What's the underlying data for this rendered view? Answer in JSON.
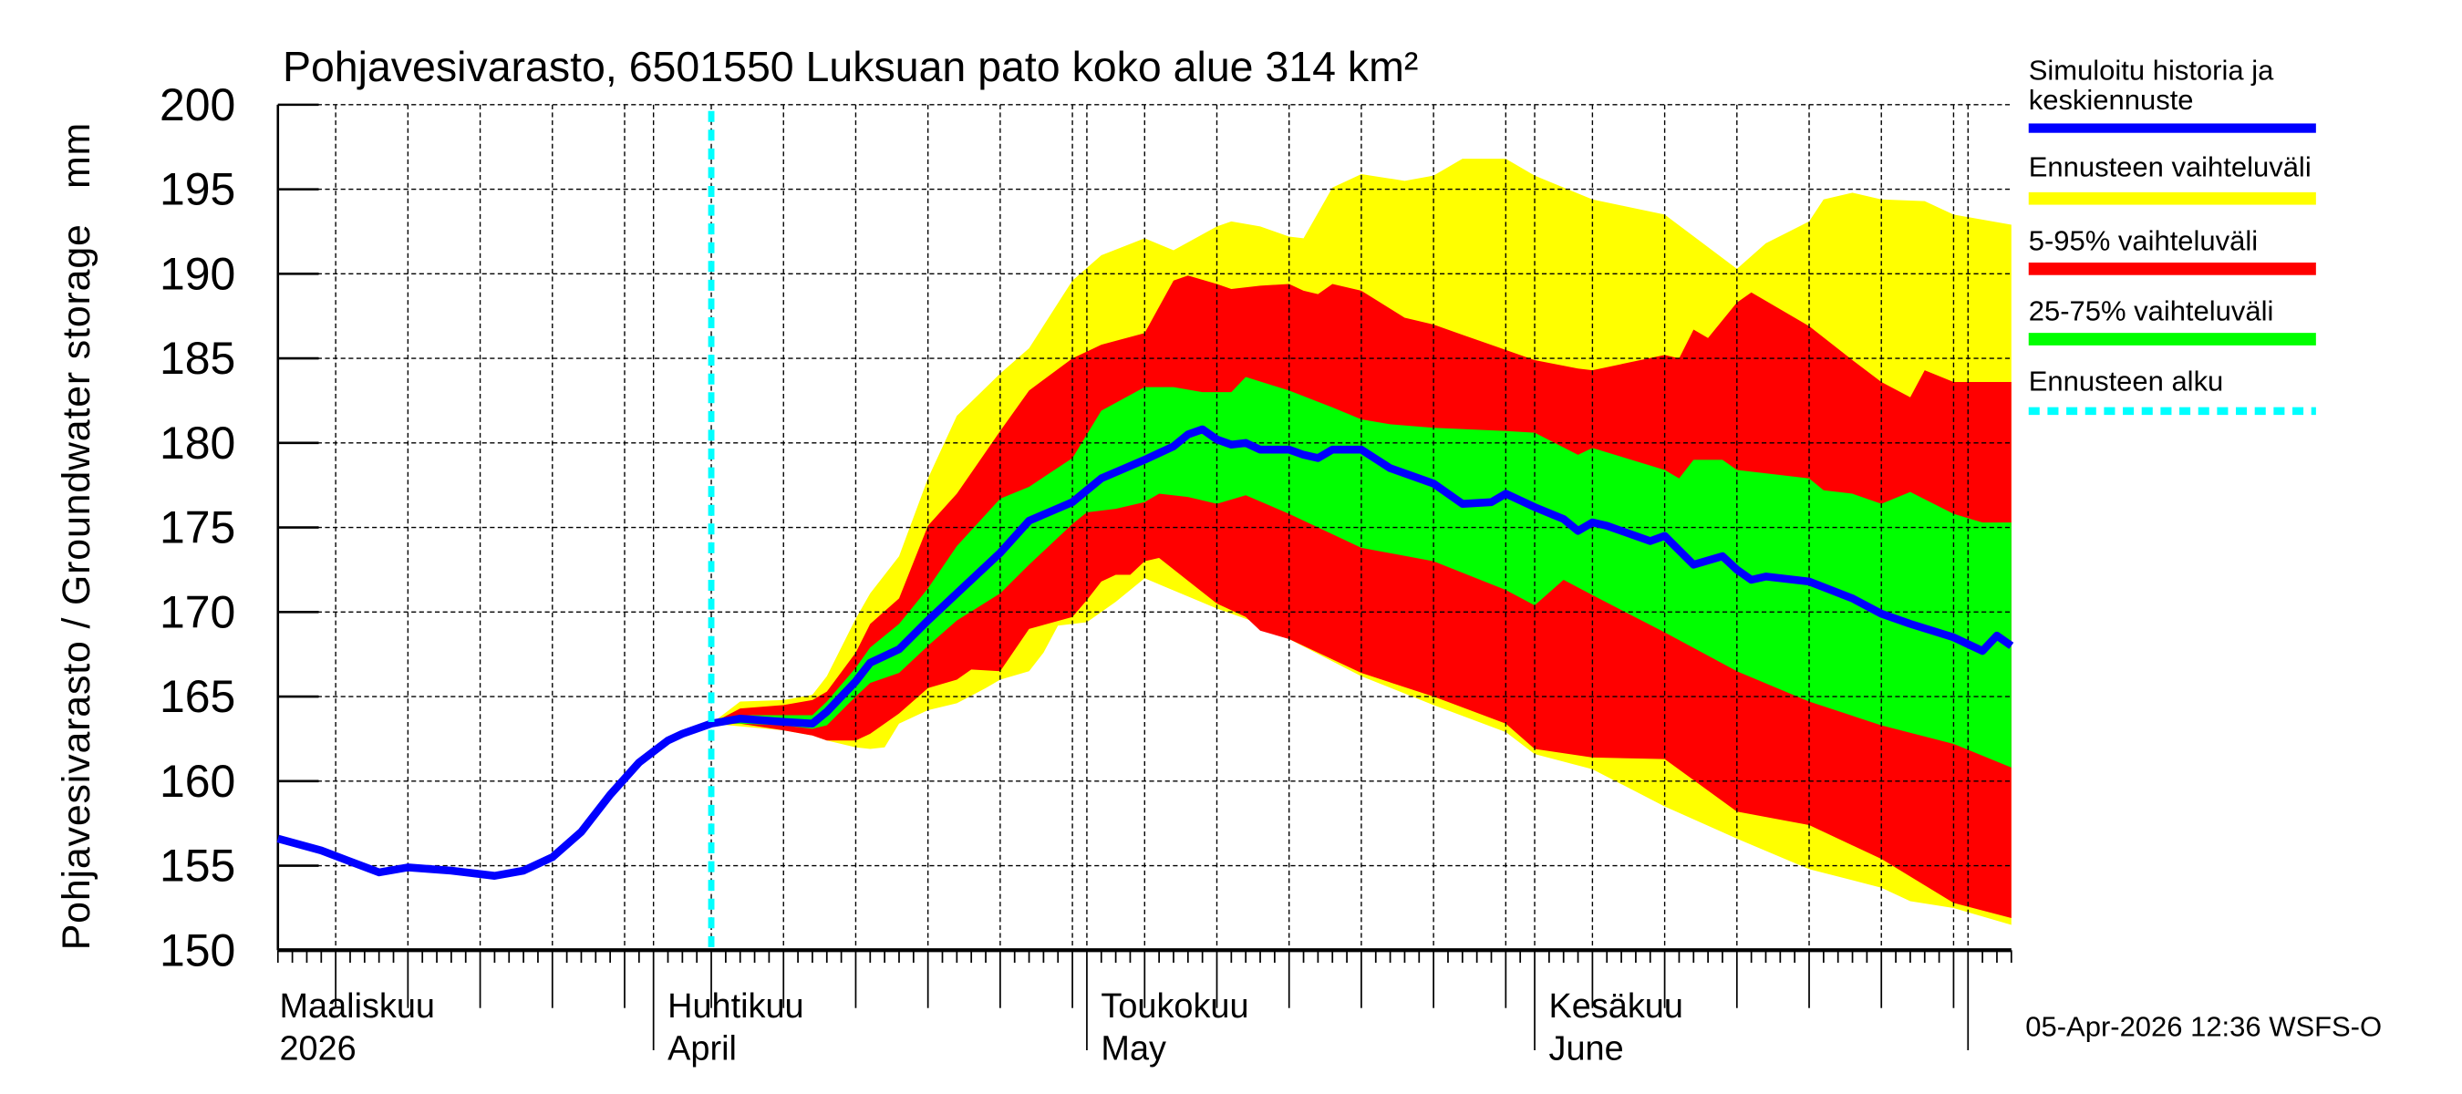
{
  "chart_data": {
    "type": "area",
    "title": "Pohjavesivarasto, 6501550 Luksuan pato koko alue 314 km²",
    "ylabel": "Pohjavesivarasto / Groundwater storage   mm",
    "xlabel": "",
    "xlim": [
      "2026-03-06",
      "2026-07-04"
    ],
    "ylim": [
      150,
      200
    ],
    "yticks": [
      150,
      155,
      160,
      165,
      170,
      175,
      180,
      185,
      190,
      195,
      200
    ],
    "grid": true,
    "legend_position": "right",
    "forecast_start": "2026-04-05",
    "month_labels": [
      {
        "date": "2026-03-01",
        "fi": "Maaliskuu",
        "en": "2026"
      },
      {
        "date": "2026-04-01",
        "fi": "Huhtikuu",
        "en": "April"
      },
      {
        "date": "2026-05-01",
        "fi": "Toukokuu",
        "en": "May"
      },
      {
        "date": "2026-06-01",
        "fi": "Kesäkuu",
        "en": "June"
      }
    ],
    "legend": {
      "median_line1": "Simuloitu historia ja",
      "median_line2": "keskiennuste",
      "range_full": "Ennusteen vaihteluväli",
      "range_5_95": "5-95% vaihteluväli",
      "range_25_75": "25-75% vaihteluväli",
      "forecast_start": "Ennusteen alku"
    },
    "colors": {
      "median": "#0000ff",
      "range_full": "#ffff00",
      "range_5_95": "#ff0000",
      "range_25_75": "#00ff00",
      "forecast_start": "#00ffff"
    },
    "series": {
      "median": [
        [
          "2026-03-06",
          156.6
        ],
        [
          "2026-03-09",
          155.9
        ],
        [
          "2026-03-13",
          154.6
        ],
        [
          "2026-03-15",
          154.9
        ],
        [
          "2026-03-18",
          154.7
        ],
        [
          "2026-03-21",
          154.4
        ],
        [
          "2026-03-23",
          154.7
        ],
        [
          "2026-03-25",
          155.5
        ],
        [
          "2026-03-27",
          157.0
        ],
        [
          "2026-03-29",
          159.2
        ],
        [
          "2026-03-31",
          161.1
        ],
        [
          "2026-04-02",
          162.4
        ],
        [
          "2026-04-03",
          162.8
        ],
        [
          "2026-04-05",
          163.4
        ],
        [
          "2026-04-07",
          163.7
        ],
        [
          "2026-04-10",
          163.5
        ],
        [
          "2026-04-12",
          163.4
        ],
        [
          "2026-04-13",
          164.1
        ],
        [
          "2026-04-15",
          165.9
        ],
        [
          "2026-04-16",
          167.0
        ],
        [
          "2026-04-18",
          167.8
        ],
        [
          "2026-04-20",
          169.5
        ],
        [
          "2026-04-22",
          171.1
        ],
        [
          "2026-04-25",
          173.5
        ],
        [
          "2026-04-27",
          175.4
        ],
        [
          "2026-04-30",
          176.5
        ],
        [
          "2026-05-02",
          177.9
        ],
        [
          "2026-05-05",
          179.0
        ],
        [
          "2026-05-07",
          179.8
        ],
        [
          "2026-05-08",
          180.5
        ],
        [
          "2026-05-09",
          180.8
        ],
        [
          "2026-05-10",
          180.2
        ],
        [
          "2026-05-11",
          179.9
        ],
        [
          "2026-05-12",
          180.0
        ],
        [
          "2026-05-13",
          179.6
        ],
        [
          "2026-05-15",
          179.6
        ],
        [
          "2026-05-16",
          179.3
        ],
        [
          "2026-05-17",
          179.1
        ],
        [
          "2026-05-18",
          179.6
        ],
        [
          "2026-05-20",
          179.6
        ],
        [
          "2026-05-22",
          178.5
        ],
        [
          "2026-05-25",
          177.6
        ],
        [
          "2026-05-27",
          176.4
        ],
        [
          "2026-05-29",
          176.5
        ],
        [
          "2026-05-30",
          177.0
        ],
        [
          "2026-06-01",
          176.2
        ],
        [
          "2026-06-03",
          175.5
        ],
        [
          "2026-06-04",
          174.8
        ],
        [
          "2026-06-05",
          175.3
        ],
        [
          "2026-06-06",
          175.1
        ],
        [
          "2026-06-09",
          174.2
        ],
        [
          "2026-06-10",
          174.5
        ],
        [
          "2026-06-12",
          172.8
        ],
        [
          "2026-06-14",
          173.3
        ],
        [
          "2026-06-15",
          172.5
        ],
        [
          "2026-06-16",
          171.9
        ],
        [
          "2026-06-17",
          172.1
        ],
        [
          "2026-06-20",
          171.8
        ],
        [
          "2026-06-23",
          170.8
        ],
        [
          "2026-06-25",
          169.9
        ],
        [
          "2026-06-27",
          169.3
        ],
        [
          "2026-06-30",
          168.5
        ],
        [
          "2026-07-02",
          167.7
        ],
        [
          "2026-07-03",
          168.6
        ],
        [
          "2026-07-04",
          168.0
        ]
      ],
      "range_full_upper": [
        [
          "2026-04-05",
          163.4
        ],
        [
          "2026-04-07",
          164.7
        ],
        [
          "2026-04-10",
          164.8
        ],
        [
          "2026-04-12",
          165.1
        ],
        [
          "2026-04-13",
          166.2
        ],
        [
          "2026-04-15",
          169.6
        ],
        [
          "2026-04-16",
          171.1
        ],
        [
          "2026-04-18",
          173.3
        ],
        [
          "2026-04-20",
          177.9
        ],
        [
          "2026-04-22",
          181.6
        ],
        [
          "2026-04-25",
          184.1
        ],
        [
          "2026-04-27",
          185.6
        ],
        [
          "2026-04-30",
          189.6
        ],
        [
          "2026-05-02",
          191.1
        ],
        [
          "2026-05-05",
          192.1
        ],
        [
          "2026-05-07",
          191.4
        ],
        [
          "2026-05-10",
          192.8
        ],
        [
          "2026-05-11",
          193.1
        ],
        [
          "2026-05-13",
          192.8
        ],
        [
          "2026-05-15",
          192.2
        ],
        [
          "2026-05-16",
          192.1
        ],
        [
          "2026-05-18",
          195.1
        ],
        [
          "2026-05-20",
          195.9
        ],
        [
          "2026-05-23",
          195.5
        ],
        [
          "2026-05-25",
          195.8
        ],
        [
          "2026-05-27",
          196.8
        ],
        [
          "2026-05-30",
          196.8
        ],
        [
          "2026-06-01",
          195.8
        ],
        [
          "2026-06-05",
          194.4
        ],
        [
          "2026-06-10",
          193.5
        ],
        [
          "2026-06-15",
          190.3
        ],
        [
          "2026-06-17",
          191.8
        ],
        [
          "2026-06-20",
          193.1
        ],
        [
          "2026-06-21",
          194.4
        ],
        [
          "2026-06-23",
          194.8
        ],
        [
          "2026-06-25",
          194.4
        ],
        [
          "2026-06-28",
          194.3
        ],
        [
          "2026-06-30",
          193.5
        ],
        [
          "2026-07-04",
          192.9
        ]
      ],
      "range_full_lower": [
        [
          "2026-04-05",
          163.4
        ],
        [
          "2026-04-10",
          163.0
        ],
        [
          "2026-04-12",
          162.7
        ],
        [
          "2026-04-13",
          162.4
        ],
        [
          "2026-04-15",
          162.0
        ],
        [
          "2026-04-16",
          161.9
        ],
        [
          "2026-04-17",
          162.0
        ],
        [
          "2026-04-18",
          163.4
        ],
        [
          "2026-04-20",
          164.2
        ],
        [
          "2026-04-22",
          164.6
        ],
        [
          "2026-04-24",
          165.5
        ],
        [
          "2026-04-25",
          166.0
        ],
        [
          "2026-04-27",
          166.5
        ],
        [
          "2026-04-28",
          167.6
        ],
        [
          "2026-04-29",
          169.2
        ],
        [
          "2026-05-01",
          169.4
        ],
        [
          "2026-05-03",
          170.6
        ],
        [
          "2026-05-05",
          172.0
        ],
        [
          "2026-05-10",
          170.2
        ],
        [
          "2026-05-13",
          169.3
        ],
        [
          "2026-05-15",
          168.4
        ],
        [
          "2026-05-20",
          166.2
        ],
        [
          "2026-05-25",
          164.5
        ],
        [
          "2026-05-30",
          162.9
        ],
        [
          "2026-06-01",
          161.6
        ],
        [
          "2026-06-05",
          160.7
        ],
        [
          "2026-06-10",
          158.5
        ],
        [
          "2026-06-15",
          156.6
        ],
        [
          "2026-06-20",
          154.8
        ],
        [
          "2026-06-25",
          153.7
        ],
        [
          "2026-06-27",
          152.9
        ],
        [
          "2026-06-30",
          152.5
        ],
        [
          "2026-07-04",
          151.5
        ]
      ],
      "range_5_95_upper": [
        [
          "2026-04-05",
          163.4
        ],
        [
          "2026-04-07",
          164.3
        ],
        [
          "2026-04-10",
          164.5
        ],
        [
          "2026-04-12",
          164.8
        ],
        [
          "2026-04-13",
          165.3
        ],
        [
          "2026-04-15",
          167.6
        ],
        [
          "2026-04-16",
          169.3
        ],
        [
          "2026-04-18",
          170.8
        ],
        [
          "2026-04-20",
          175.1
        ],
        [
          "2026-04-22",
          177.0
        ],
        [
          "2026-04-25",
          180.7
        ],
        [
          "2026-04-27",
          183.1
        ],
        [
          "2026-04-30",
          185.0
        ],
        [
          "2026-05-02",
          185.8
        ],
        [
          "2026-05-05",
          186.5
        ],
        [
          "2026-05-07",
          189.6
        ],
        [
          "2026-05-08",
          189.9
        ],
        [
          "2026-05-10",
          189.4
        ],
        [
          "2026-05-11",
          189.1
        ],
        [
          "2026-05-13",
          189.3
        ],
        [
          "2026-05-15",
          189.4
        ],
        [
          "2026-05-16",
          189.0
        ],
        [
          "2026-05-17",
          188.8
        ],
        [
          "2026-05-18",
          189.4
        ],
        [
          "2026-05-20",
          189.0
        ],
        [
          "2026-05-23",
          187.4
        ],
        [
          "2026-05-25",
          187.0
        ],
        [
          "2026-05-27",
          186.4
        ],
        [
          "2026-05-30",
          185.5
        ],
        [
          "2026-06-01",
          184.9
        ],
        [
          "2026-06-04",
          184.4
        ],
        [
          "2026-06-05",
          184.3
        ],
        [
          "2026-06-10",
          185.2
        ],
        [
          "2026-06-11",
          185.0
        ],
        [
          "2026-06-12",
          186.7
        ],
        [
          "2026-06-13",
          186.2
        ],
        [
          "2026-06-15",
          188.3
        ],
        [
          "2026-06-16",
          188.9
        ],
        [
          "2026-06-20",
          186.9
        ],
        [
          "2026-06-23",
          184.9
        ],
        [
          "2026-06-25",
          183.6
        ],
        [
          "2026-06-27",
          182.7
        ],
        [
          "2026-06-28",
          184.3
        ],
        [
          "2026-06-30",
          183.6
        ],
        [
          "2026-07-04",
          183.6
        ]
      ],
      "range_5_95_lower": [
        [
          "2026-04-05",
          163.4
        ],
        [
          "2026-04-07",
          163.4
        ],
        [
          "2026-04-10",
          163.0
        ],
        [
          "2026-04-12",
          162.7
        ],
        [
          "2026-04-13",
          162.4
        ],
        [
          "2026-04-15",
          162.4
        ],
        [
          "2026-04-16",
          162.8
        ],
        [
          "2026-04-18",
          164.0
        ],
        [
          "2026-04-20",
          165.5
        ],
        [
          "2026-04-22",
          166.0
        ],
        [
          "2026-04-23",
          166.6
        ],
        [
          "2026-04-25",
          166.5
        ],
        [
          "2026-04-27",
          169.0
        ],
        [
          "2026-04-30",
          169.7
        ],
        [
          "2026-05-01",
          170.7
        ],
        [
          "2026-05-02",
          171.8
        ],
        [
          "2026-05-03",
          172.2
        ],
        [
          "2026-05-04",
          172.2
        ],
        [
          "2026-05-05",
          173.0
        ],
        [
          "2026-05-06",
          173.2
        ],
        [
          "2026-05-10",
          170.5
        ],
        [
          "2026-05-12",
          169.7
        ],
        [
          "2026-05-13",
          168.9
        ],
        [
          "2026-05-15",
          168.4
        ],
        [
          "2026-05-20",
          166.4
        ],
        [
          "2026-05-25",
          165.0
        ],
        [
          "2026-05-30",
          163.4
        ],
        [
          "2026-06-01",
          161.9
        ],
        [
          "2026-06-05",
          161.4
        ],
        [
          "2026-06-10",
          161.3
        ],
        [
          "2026-06-15",
          158.2
        ],
        [
          "2026-06-20",
          157.4
        ],
        [
          "2026-06-25",
          155.4
        ],
        [
          "2026-06-30",
          152.8
        ],
        [
          "2026-07-04",
          151.9
        ]
      ],
      "range_25_75_upper": [
        [
          "2026-04-05",
          163.4
        ],
        [
          "2026-04-07",
          163.9
        ],
        [
          "2026-04-10",
          163.9
        ],
        [
          "2026-04-12",
          163.9
        ],
        [
          "2026-04-13",
          164.7
        ],
        [
          "2026-04-15",
          166.7
        ],
        [
          "2026-04-16",
          167.9
        ],
        [
          "2026-04-18",
          169.3
        ],
        [
          "2026-04-20",
          171.4
        ],
        [
          "2026-04-22",
          173.9
        ],
        [
          "2026-04-25",
          176.7
        ],
        [
          "2026-04-27",
          177.4
        ],
        [
          "2026-04-30",
          179.1
        ],
        [
          "2026-05-02",
          181.9
        ],
        [
          "2026-05-05",
          183.3
        ],
        [
          "2026-05-07",
          183.3
        ],
        [
          "2026-05-09",
          183.0
        ],
        [
          "2026-05-11",
          183.0
        ],
        [
          "2026-05-12",
          183.9
        ],
        [
          "2026-05-15",
          183.1
        ],
        [
          "2026-05-18",
          182.1
        ],
        [
          "2026-05-20",
          181.4
        ],
        [
          "2026-05-22",
          181.1
        ],
        [
          "2026-05-25",
          180.9
        ],
        [
          "2026-05-30",
          180.7
        ],
        [
          "2026-06-01",
          180.6
        ],
        [
          "2026-06-04",
          179.3
        ],
        [
          "2026-06-05",
          179.7
        ],
        [
          "2026-06-10",
          178.4
        ],
        [
          "2026-06-11",
          177.9
        ],
        [
          "2026-06-12",
          179.0
        ],
        [
          "2026-06-14",
          179.0
        ],
        [
          "2026-06-15",
          178.4
        ],
        [
          "2026-06-20",
          177.9
        ],
        [
          "2026-06-21",
          177.2
        ],
        [
          "2026-06-23",
          177.0
        ],
        [
          "2026-06-25",
          176.4
        ],
        [
          "2026-06-27",
          177.1
        ],
        [
          "2026-06-30",
          175.8
        ],
        [
          "2026-07-02",
          175.3
        ],
        [
          "2026-07-04",
          175.3
        ]
      ],
      "range_25_75_lower": [
        [
          "2026-04-05",
          163.4
        ],
        [
          "2026-04-07",
          163.4
        ],
        [
          "2026-04-10",
          163.3
        ],
        [
          "2026-04-12",
          163.1
        ],
        [
          "2026-04-13",
          163.3
        ],
        [
          "2026-04-15",
          165.0
        ],
        [
          "2026-04-16",
          165.8
        ],
        [
          "2026-04-18",
          166.4
        ],
        [
          "2026-04-20",
          168.0
        ],
        [
          "2026-04-22",
          169.5
        ],
        [
          "2026-04-25",
          171.1
        ],
        [
          "2026-04-27",
          172.8
        ],
        [
          "2026-04-30",
          175.2
        ],
        [
          "2026-05-01",
          175.9
        ],
        [
          "2026-05-03",
          176.1
        ],
        [
          "2026-05-05",
          176.5
        ],
        [
          "2026-05-06",
          177.0
        ],
        [
          "2026-05-08",
          176.8
        ],
        [
          "2026-05-10",
          176.4
        ],
        [
          "2026-05-12",
          176.9
        ],
        [
          "2026-05-15",
          175.8
        ],
        [
          "2026-05-20",
          173.8
        ],
        [
          "2026-05-25",
          173.0
        ],
        [
          "2026-05-30",
          171.3
        ],
        [
          "2026-06-01",
          170.4
        ],
        [
          "2026-06-03",
          171.9
        ],
        [
          "2026-06-05",
          171.0
        ],
        [
          "2026-06-10",
          168.8
        ],
        [
          "2026-06-15",
          166.5
        ],
        [
          "2026-06-20",
          164.7
        ],
        [
          "2026-06-25",
          163.3
        ],
        [
          "2026-06-30",
          162.2
        ],
        [
          "2026-07-04",
          160.8
        ]
      ]
    }
  },
  "footer": {
    "timestamp": "05-Apr-2026 12:36 WSFS-O"
  }
}
